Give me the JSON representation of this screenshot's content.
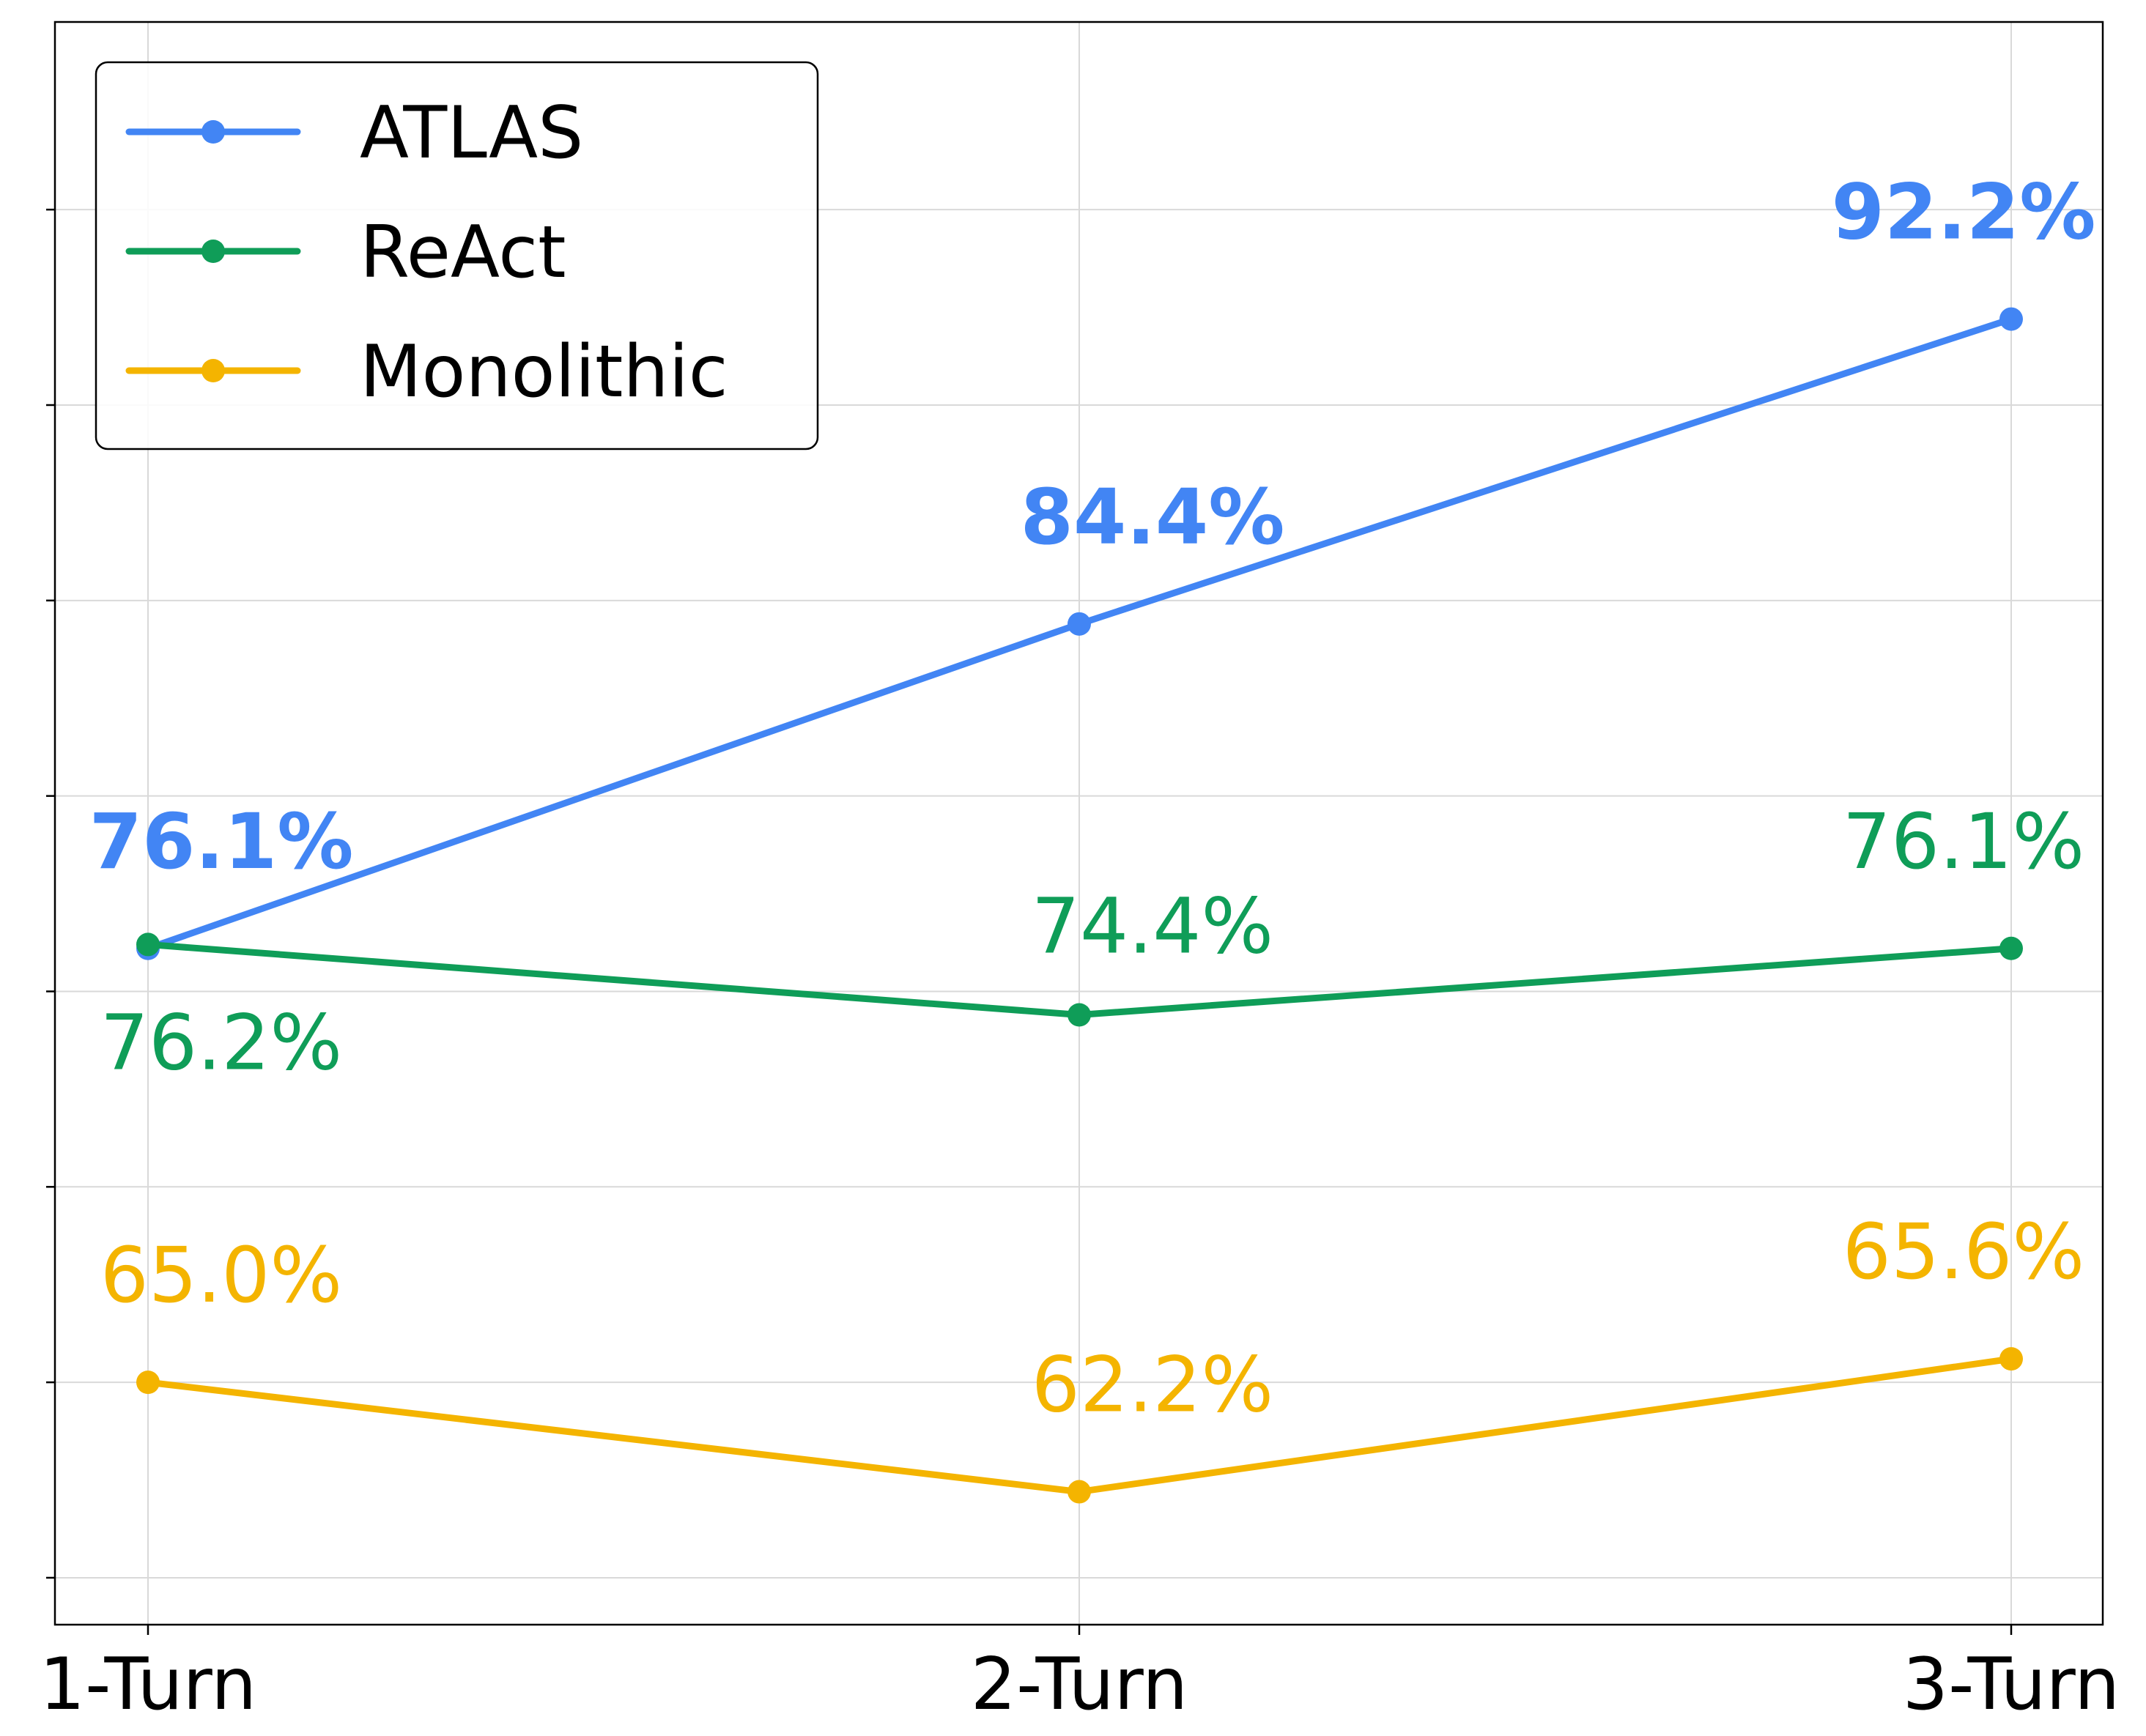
{
  "chart_data": {
    "type": "line",
    "categories": [
      "1-Turn",
      "2-Turn",
      "3-Turn"
    ],
    "series": [
      {
        "name": "ATLAS",
        "color": "#4285f4",
        "values": [
          76.1,
          84.4,
          92.2
        ],
        "labels": [
          "76.1%",
          "84.4%",
          "92.2%"
        ],
        "label_bold": true
      },
      {
        "name": "ReAct",
        "color": "#0f9d58",
        "values": [
          76.2,
          74.4,
          76.1
        ],
        "labels": [
          "76.2%",
          "74.4%",
          "76.1%"
        ],
        "label_bold": false
      },
      {
        "name": "Monolithic",
        "color": "#f4b400",
        "values": [
          65.0,
          62.2,
          65.6
        ],
        "labels": [
          "65.0%",
          "62.2%",
          "65.6%"
        ],
        "label_bold": false
      }
    ],
    "ylim": [
      58.8,
      99.8
    ],
    "yticks": [
      60,
      65,
      70,
      75,
      80,
      85,
      90,
      95,
      100
    ],
    "ytick_labels_visible": false,
    "grid": true,
    "legend_position": "top-left",
    "title": "",
    "xlabel": "",
    "ylabel": ""
  }
}
